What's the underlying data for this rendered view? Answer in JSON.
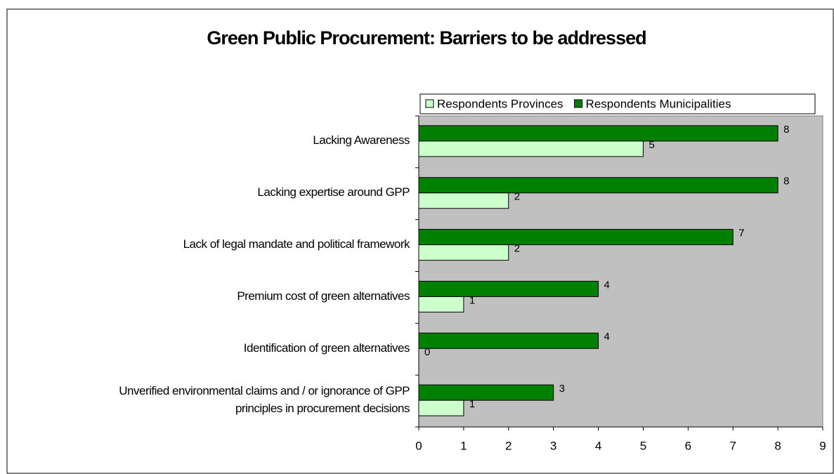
{
  "chart_data": {
    "type": "hbar",
    "title": "Green Public Procurement: Barriers to be addressed",
    "categories": [
      "Lacking Awareness",
      "Lacking expertise around GPP",
      "Lack of legal mandate and political framework",
      "Premium cost of green alternatives",
      "Identification of green alternatives",
      "Unverified environmental claims and / or ignorance of GPP\nprinciples in procurement decisions"
    ],
    "series": [
      {
        "name": "Respondents Provinces",
        "color": "#ccffcc",
        "values": [
          5,
          2,
          2,
          1,
          0,
          1
        ]
      },
      {
        "name": "Respondents Municipalities",
        "color": "#008000",
        "values": [
          8,
          8,
          7,
          4,
          4,
          3
        ]
      }
    ],
    "xlim": [
      0,
      9
    ],
    "xticks": [
      0,
      1,
      2,
      3,
      4,
      5,
      6,
      7,
      8,
      9
    ],
    "plot_background": "#c0c0c0",
    "legend": "top"
  }
}
